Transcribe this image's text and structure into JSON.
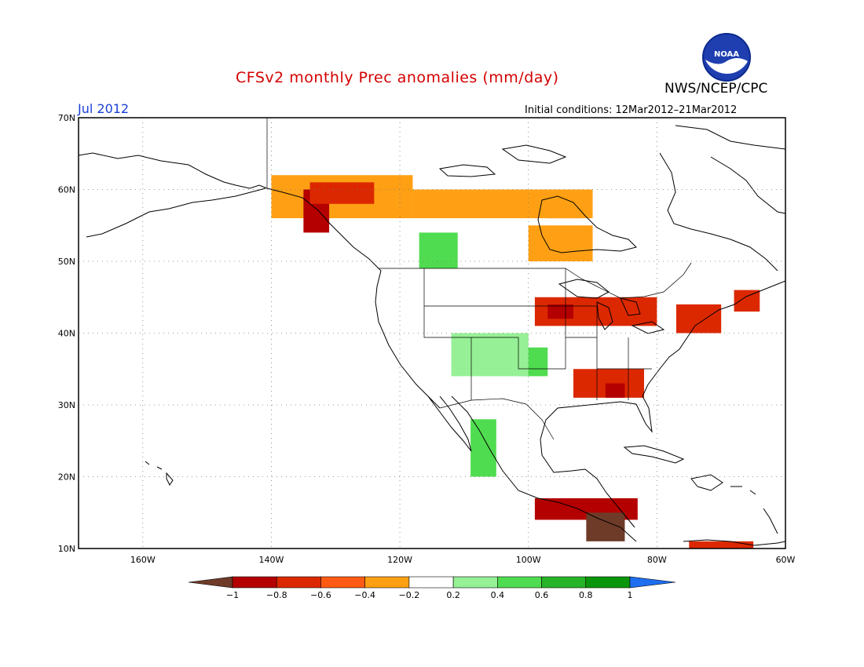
{
  "header": {
    "title": "CFSv2 monthly Prec anomalies (mm/day)",
    "agency": "NWS/NCEP/CPC",
    "month": "Jul 2012",
    "initial_conditions": "Initial conditions: 12Mar2012–21Mar2012",
    "logo_text": "NOAA"
  },
  "map": {
    "projection": "lat-lon",
    "lon_range": [
      -170,
      -60
    ],
    "lat_range": [
      10,
      70
    ],
    "lat_ticks": [
      "70N",
      "60N",
      "50N",
      "40N",
      "30N",
      "20N",
      "10N"
    ],
    "lon_ticks": [
      "160W",
      "140W",
      "120W",
      "100W",
      "80W",
      "60W"
    ],
    "grid": "dotted"
  },
  "colorbar": {
    "labels": [
      "−1",
      "−0.8",
      "−0.6",
      "−0.4",
      "−0.2",
      "0.2",
      "0.4",
      "0.6",
      "0.8",
      "1"
    ],
    "colors": [
      "#6e3b28",
      "#b40000",
      "#dc2800",
      "#ff5a14",
      "#ffa014",
      "#ffffff",
      "#96f096",
      "#50dc50",
      "#28b428",
      "#0a960a",
      "#1e6ef0"
    ]
  },
  "anomaly_regions": [
    {
      "name": "NW Canada dry",
      "color": "#ffa014",
      "lon": [
        -140,
        -118
      ],
      "lat": [
        56,
        62
      ]
    },
    {
      "name": "BC coast very dry",
      "color": "#b40000",
      "lon": [
        -135,
        -131
      ],
      "lat": [
        54,
        60
      ]
    },
    {
      "name": "Yukon dry",
      "color": "#dc2800",
      "lon": [
        -134,
        -124
      ],
      "lat": [
        58,
        61
      ]
    },
    {
      "name": "Hudson Bay dry",
      "color": "#dc2800",
      "lon": [
        -97,
        -92
      ],
      "lat": [
        56,
        60
      ]
    },
    {
      "name": "Central Canada dry",
      "color": "#ffa014",
      "lon": [
        -118,
        -90
      ],
      "lat": [
        56,
        60
      ]
    },
    {
      "name": "Ontario dry",
      "color": "#ffa014",
      "lon": [
        -100,
        -90
      ],
      "lat": [
        50,
        55
      ]
    },
    {
      "name": "Northern Rockies wet",
      "color": "#50dc50",
      "lon": [
        -117,
        -111
      ],
      "lat": [
        49,
        54
      ]
    },
    {
      "name": "Great Lakes dry",
      "color": "#dc2800",
      "lon": [
        -99,
        -80
      ],
      "lat": [
        41,
        45
      ]
    },
    {
      "name": "Midwest very dry",
      "color": "#b40000",
      "lon": [
        -97,
        -93
      ],
      "lat": [
        42,
        44
      ]
    },
    {
      "name": "New England dry",
      "color": "#dc2800",
      "lon": [
        -77,
        -70
      ],
      "lat": [
        40,
        44
      ]
    },
    {
      "name": "Southeast dry",
      "color": "#dc2800",
      "lon": [
        -93,
        -82
      ],
      "lat": [
        31,
        35
      ]
    },
    {
      "name": "Southeast very dry",
      "color": "#b40000",
      "lon": [
        -88,
        -85
      ],
      "lat": [
        31,
        33
      ]
    },
    {
      "name": "Plains wet",
      "color": "#50dc50",
      "lon": [
        -102,
        -97
      ],
      "lat": [
        34,
        38
      ]
    },
    {
      "name": "Southwest wet",
      "color": "#96f096",
      "lon": [
        -112,
        -100
      ],
      "lat": [
        34,
        40
      ]
    },
    {
      "name": "Mexico west coast wet",
      "color": "#50dc50",
      "lon": [
        -109,
        -105
      ],
      "lat": [
        20,
        28
      ]
    },
    {
      "name": "Central America dry",
      "color": "#b40000",
      "lon": [
        -99,
        -83
      ],
      "lat": [
        14,
        17
      ]
    },
    {
      "name": "Guatemala extreme dry",
      "color": "#6e3b28",
      "lon": [
        -91,
        -85
      ],
      "lat": [
        11,
        15
      ]
    },
    {
      "name": "Venezuela dry",
      "color": "#dc2800",
      "lon": [
        -75,
        -65
      ],
      "lat": [
        10,
        11
      ]
    },
    {
      "name": "Atlantic Canada dry",
      "color": "#dc2800",
      "lon": [
        -68,
        -64
      ],
      "lat": [
        43,
        46
      ]
    }
  ]
}
